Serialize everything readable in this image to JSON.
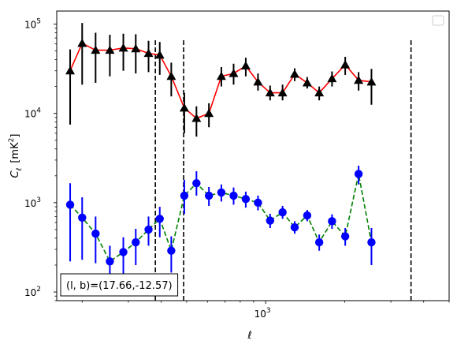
{
  "chart_data": {
    "type": "scatter",
    "title": "",
    "xlabel": "ℓ",
    "ylabel_main": "C",
    "ylabel_sub": "ℓ",
    "ylabel_unit_open": "[mK",
    "ylabel_unit_sup": "2",
    "ylabel_unit_close": "]",
    "xscale": "log",
    "yscale": "log",
    "xlim": [
      160,
      5000
    ],
    "ylim": [
      80,
      140000
    ],
    "xticks": [
      {
        "value": 1000,
        "base": "10",
        "exp": "3"
      }
    ],
    "yticks": [
      {
        "value": 100,
        "base": "10",
        "exp": "2"
      },
      {
        "value": 1000,
        "base": "10",
        "exp": "3"
      },
      {
        "value": 10000,
        "base": "10",
        "exp": "4"
      },
      {
        "value": 100000,
        "base": "10",
        "exp": "5"
      }
    ],
    "legend": "top-right (empty)",
    "grid": false,
    "vlines": [
      380,
      487,
      3580
    ],
    "annotation": "(l, b)=(17.66,-12.57)",
    "annotation_placement": "bottom-left",
    "series": [
      {
        "marker": "triangle",
        "marker_color": "#000000",
        "line_color": "#ff0000",
        "line_style": "solid",
        "points": [
          {
            "x": 180,
            "y": 30000,
            "lo": 7500,
            "hi": 52000
          },
          {
            "x": 200,
            "y": 61000,
            "lo": 21000,
            "hi": 103000
          },
          {
            "x": 225,
            "y": 51000,
            "lo": 22000,
            "hi": 80000
          },
          {
            "x": 255,
            "y": 51000,
            "lo": 26000,
            "hi": 76000
          },
          {
            "x": 287,
            "y": 54000,
            "lo": 30000,
            "hi": 78000
          },
          {
            "x": 320,
            "y": 53000,
            "lo": 28000,
            "hi": 77000
          },
          {
            "x": 358,
            "y": 47000,
            "lo": 29000,
            "hi": 65000
          },
          {
            "x": 395,
            "y": 45000,
            "lo": 27000,
            "hi": 63000
          },
          {
            "x": 437,
            "y": 26000,
            "lo": 15500,
            "hi": 37000
          },
          {
            "x": 490,
            "y": 11500,
            "lo": 6000,
            "hi": 17000
          },
          {
            "x": 545,
            "y": 8800,
            "lo": 5500,
            "hi": 12000
          },
          {
            "x": 608,
            "y": 10000,
            "lo": 7000,
            "hi": 13000
          },
          {
            "x": 678,
            "y": 26000,
            "lo": 20000,
            "hi": 33000
          },
          {
            "x": 755,
            "y": 28000,
            "lo": 21000,
            "hi": 36000
          },
          {
            "x": 840,
            "y": 34000,
            "lo": 26000,
            "hi": 42000
          },
          {
            "x": 935,
            "y": 22500,
            "lo": 18000,
            "hi": 28000
          },
          {
            "x": 1040,
            "y": 17000,
            "lo": 14000,
            "hi": 20500
          },
          {
            "x": 1160,
            "y": 17000,
            "lo": 14000,
            "hi": 21000
          },
          {
            "x": 1290,
            "y": 27500,
            "lo": 23000,
            "hi": 32000
          },
          {
            "x": 1440,
            "y": 22000,
            "lo": 19000,
            "hi": 25500
          },
          {
            "x": 1600,
            "y": 17000,
            "lo": 14000,
            "hi": 20000
          },
          {
            "x": 1790,
            "y": 24500,
            "lo": 20000,
            "hi": 29500
          },
          {
            "x": 2010,
            "y": 35000,
            "lo": 27000,
            "hi": 43000
          },
          {
            "x": 2260,
            "y": 23500,
            "lo": 18000,
            "hi": 29000
          },
          {
            "x": 2530,
            "y": 22500,
            "lo": 12500,
            "hi": 31500
          }
        ]
      },
      {
        "marker": "circle",
        "marker_color": "#0000ff",
        "line_color": "#008000",
        "line_style": "dashed",
        "points": [
          {
            "x": 180,
            "y": 950,
            "lo": 220,
            "hi": 1650
          },
          {
            "x": 200,
            "y": 680,
            "lo": 230,
            "hi": 1150
          },
          {
            "x": 225,
            "y": 450,
            "lo": 210,
            "hi": 700
          },
          {
            "x": 255,
            "y": 220,
            "lo": 110,
            "hi": 330
          },
          {
            "x": 287,
            "y": 280,
            "lo": 150,
            "hi": 410
          },
          {
            "x": 320,
            "y": 360,
            "lo": 200,
            "hi": 510
          },
          {
            "x": 358,
            "y": 500,
            "lo": 330,
            "hi": 700
          },
          {
            "x": 395,
            "y": 660,
            "lo": 410,
            "hi": 900
          },
          {
            "x": 437,
            "y": 290,
            "lo": 165,
            "hi": 420
          },
          {
            "x": 490,
            "y": 1200,
            "lo": 750,
            "hi": 1800
          },
          {
            "x": 545,
            "y": 1650,
            "lo": 1200,
            "hi": 2250
          },
          {
            "x": 608,
            "y": 1200,
            "lo": 920,
            "hi": 1500
          },
          {
            "x": 678,
            "y": 1300,
            "lo": 1030,
            "hi": 1600
          },
          {
            "x": 755,
            "y": 1200,
            "lo": 950,
            "hi": 1480
          },
          {
            "x": 840,
            "y": 1100,
            "lo": 880,
            "hi": 1330
          },
          {
            "x": 935,
            "y": 1000,
            "lo": 820,
            "hi": 1200
          },
          {
            "x": 1040,
            "y": 630,
            "lo": 520,
            "hi": 750
          },
          {
            "x": 1160,
            "y": 780,
            "lo": 660,
            "hi": 920
          },
          {
            "x": 1290,
            "y": 530,
            "lo": 450,
            "hi": 620
          },
          {
            "x": 1440,
            "y": 720,
            "lo": 620,
            "hi": 830
          },
          {
            "x": 1600,
            "y": 360,
            "lo": 290,
            "hi": 440
          },
          {
            "x": 1790,
            "y": 620,
            "lo": 510,
            "hi": 740
          },
          {
            "x": 2010,
            "y": 420,
            "lo": 330,
            "hi": 520
          },
          {
            "x": 2260,
            "y": 2100,
            "lo": 1600,
            "hi": 2600
          },
          {
            "x": 2530,
            "y": 360,
            "lo": 200,
            "hi": 520
          }
        ]
      }
    ]
  }
}
